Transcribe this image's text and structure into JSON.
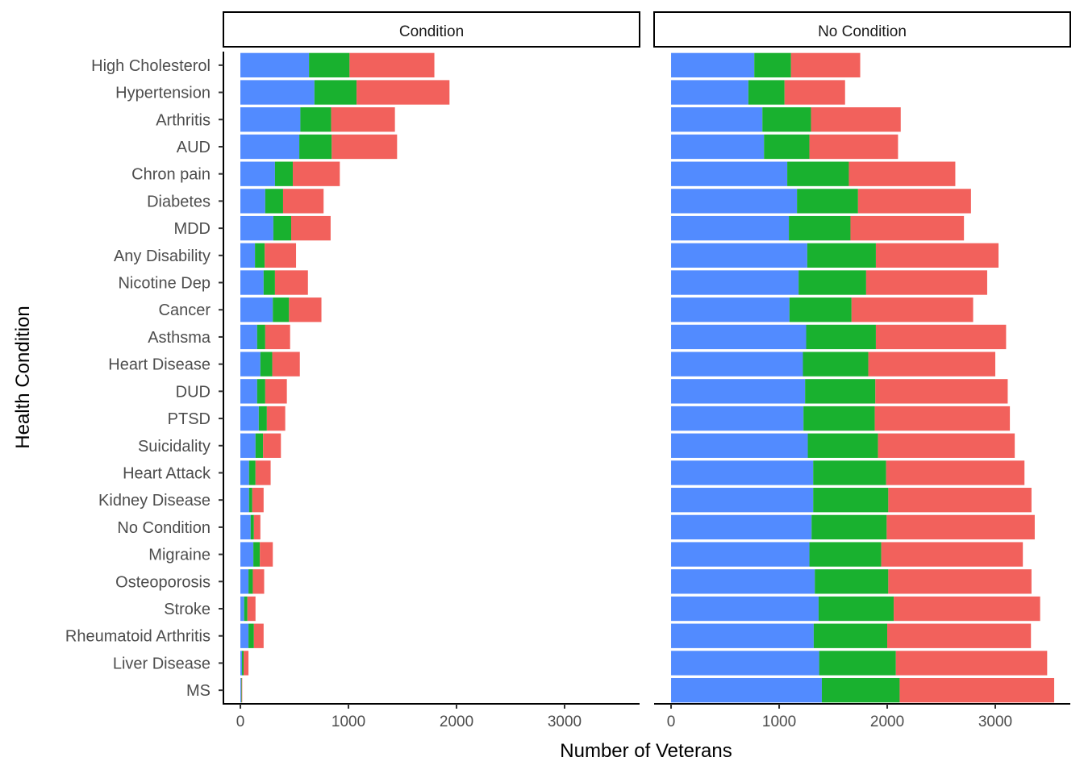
{
  "chart_data": {
    "type": "bar",
    "orientation": "horizontal",
    "stacked": true,
    "xlabel": "Number of Veterans",
    "ylabel": "Health Condition",
    "xlim": [
      -157,
      3694
    ],
    "xticks": [
      0,
      1000,
      2000,
      3000
    ],
    "grid": false,
    "legend": "none",
    "series_colors": [
      "#F8766D",
      "#00BA38",
      "#619CFF"
    ],
    "categories": [
      "High Cholesterol",
      "Hypertension",
      "Arthritis",
      "AUD",
      "Chron pain",
      "Diabetes",
      "MDD",
      "Any Disability",
      "Nicotine Dep",
      "Cancer",
      "Asthsma",
      "Heart Disease",
      "DUD",
      "PTSD",
      "Suicidality",
      "Heart Attack",
      "Kidney Disease",
      "No Condition",
      "Migraine",
      "Osteoporosis",
      "Stroke",
      "Rheumatoid Arthritis",
      "Liver Disease",
      "MS"
    ],
    "panels": [
      {
        "title": "Condition",
        "series": [
          {
            "name": "blue",
            "color": "#528BFF",
            "values": [
              635,
              685,
              555,
              545,
              320,
              230,
              305,
              135,
              215,
              300,
              155,
              185,
              155,
              170,
              140,
              80,
              80,
              95,
              120,
              75,
              35,
              75,
              15,
              7
            ]
          },
          {
            "name": "green",
            "color": "#19B12F",
            "values": [
              375,
              390,
              285,
              300,
              165,
              165,
              165,
              90,
              105,
              150,
              75,
              110,
              75,
              75,
              70,
              60,
              30,
              30,
              60,
              40,
              30,
              50,
              15,
              5
            ]
          },
          {
            "name": "red",
            "color": "#F2615C",
            "values": [
              785,
              860,
              590,
              605,
              435,
              375,
              365,
              290,
              305,
              300,
              230,
              255,
              200,
              170,
              165,
              140,
              105,
              60,
              120,
              105,
              75,
              90,
              45,
              5
            ]
          }
        ]
      },
      {
        "title": "No Condition",
        "series": [
          {
            "name": "blue",
            "color": "#528BFF",
            "values": [
              770,
              715,
              845,
              860,
              1075,
              1165,
              1090,
              1260,
              1180,
              1095,
              1250,
              1220,
              1240,
              1225,
              1265,
              1315,
              1315,
              1300,
              1280,
              1330,
              1365,
              1320,
              1370,
              1395
            ]
          },
          {
            "name": "green",
            "color": "#19B12F",
            "values": [
              340,
              335,
              450,
              420,
              570,
              565,
              570,
              635,
              625,
              575,
              645,
              605,
              650,
              660,
              650,
              675,
              695,
              695,
              665,
              680,
              695,
              680,
              710,
              720
            ]
          },
          {
            "name": "red",
            "color": "#F2615C",
            "values": [
              640,
              560,
              830,
              820,
              985,
              1045,
              1050,
              1135,
              1120,
              1125,
              1205,
              1175,
              1225,
              1250,
              1265,
              1280,
              1325,
              1370,
              1310,
              1325,
              1355,
              1330,
              1400,
              1430
            ]
          }
        ]
      }
    ]
  }
}
